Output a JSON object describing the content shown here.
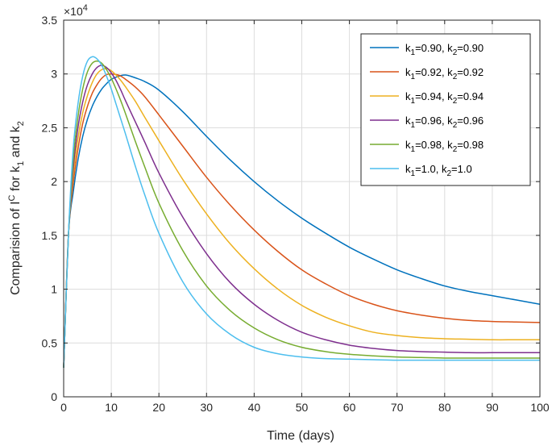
{
  "chart_data": {
    "type": "line",
    "xlabel": "Time (days)",
    "ylabel_parts": {
      "prefix": "Comparision of I",
      "sup": "C",
      "mid": " for k",
      "sub1": "1",
      "and": " and k",
      "sub2": "2"
    },
    "exponent_label": "×10",
    "exponent_power": "4",
    "xlim": [
      0,
      100
    ],
    "ylim": [
      0,
      3.5
    ],
    "x_ticks": [
      0,
      10,
      20,
      30,
      40,
      50,
      60,
      70,
      80,
      90,
      100
    ],
    "y_ticks": [
      0,
      0.5,
      1,
      1.5,
      2,
      2.5,
      3,
      3.5
    ],
    "y_tick_labels": [
      "0",
      "0.5",
      "1",
      "1.5",
      "2",
      "2.5",
      "3",
      "3.5"
    ],
    "grid": true,
    "legend_position": "top-right",
    "series": [
      {
        "name": "k1=0.90, k2=0.90",
        "legend": {
          "k1": "=0.90, k",
          "k2": "=0.90"
        },
        "color": "#0072BD",
        "x": [
          0,
          1,
          2,
          3,
          4,
          5,
          6,
          7,
          8,
          9,
          10,
          11,
          12,
          13,
          14,
          15,
          17,
          20,
          25,
          30,
          35,
          40,
          45,
          50,
          55,
          60,
          65,
          70,
          75,
          80,
          85,
          90,
          95,
          100
        ],
        "y": [
          0.27,
          1.5,
          1.9,
          2.2,
          2.42,
          2.58,
          2.7,
          2.79,
          2.86,
          2.91,
          2.95,
          2.97,
          2.985,
          2.99,
          2.98,
          2.965,
          2.93,
          2.85,
          2.65,
          2.42,
          2.2,
          2.0,
          1.82,
          1.66,
          1.52,
          1.39,
          1.28,
          1.18,
          1.1,
          1.03,
          0.98,
          0.94,
          0.9,
          0.86
        ]
      },
      {
        "name": "k1=0.92, k2=0.92",
        "legend": {
          "k1": "=0.92, k",
          "k2": "=0.92"
        },
        "color": "#D95319",
        "x": [
          0,
          1,
          2,
          3,
          4,
          5,
          6,
          7,
          8,
          9,
          10,
          11,
          12,
          13,
          15,
          17,
          20,
          25,
          30,
          35,
          40,
          45,
          50,
          55,
          60,
          65,
          70,
          75,
          80,
          85,
          90,
          95,
          100
        ],
        "y": [
          0.27,
          1.5,
          1.98,
          2.3,
          2.54,
          2.7,
          2.82,
          2.9,
          2.96,
          2.995,
          3.0,
          2.995,
          2.98,
          2.95,
          2.88,
          2.79,
          2.62,
          2.33,
          2.04,
          1.78,
          1.55,
          1.35,
          1.18,
          1.05,
          0.94,
          0.86,
          0.8,
          0.76,
          0.73,
          0.71,
          0.7,
          0.695,
          0.69
        ]
      },
      {
        "name": "k1=0.94, k2=0.94",
        "legend": {
          "k1": "=0.94, k",
          "k2": "=0.94"
        },
        "color": "#EDB120",
        "x": [
          0,
          1,
          2,
          3,
          4,
          5,
          6,
          7,
          8,
          9,
          10,
          11,
          12,
          13,
          15,
          17,
          20,
          25,
          30,
          35,
          40,
          45,
          50,
          55,
          60,
          65,
          70,
          75,
          80,
          85,
          90,
          95,
          100
        ],
        "y": [
          0.27,
          1.5,
          2.05,
          2.4,
          2.64,
          2.8,
          2.92,
          3.0,
          3.04,
          3.05,
          3.03,
          2.99,
          2.94,
          2.88,
          2.75,
          2.6,
          2.38,
          2.02,
          1.7,
          1.42,
          1.19,
          1.0,
          0.85,
          0.74,
          0.66,
          0.6,
          0.57,
          0.55,
          0.54,
          0.535,
          0.53,
          0.53,
          0.53
        ]
      },
      {
        "name": "k1=0.96, k2=0.96",
        "legend": {
          "k1": "=0.96, k",
          "k2": "=0.96"
        },
        "color": "#7E2F8E",
        "x": [
          0,
          1,
          2,
          3,
          4,
          5,
          6,
          7,
          8,
          9,
          10,
          11,
          12,
          13,
          15,
          17,
          20,
          25,
          30,
          35,
          40,
          45,
          50,
          55,
          60,
          65,
          70,
          75,
          80,
          85,
          90,
          95,
          100
        ],
        "y": [
          0.27,
          1.5,
          2.12,
          2.5,
          2.74,
          2.9,
          3.0,
          3.06,
          3.08,
          3.06,
          3.01,
          2.94,
          2.85,
          2.75,
          2.56,
          2.37,
          2.08,
          1.67,
          1.33,
          1.06,
          0.86,
          0.71,
          0.6,
          0.53,
          0.48,
          0.45,
          0.43,
          0.42,
          0.415,
          0.41,
          0.41,
          0.41,
          0.41
        ]
      },
      {
        "name": "k1=0.98, k2=0.98",
        "legend": {
          "k1": "=0.98, k",
          "k2": "=0.98"
        },
        "color": "#77AC30",
        "x": [
          0,
          1,
          2,
          3,
          4,
          5,
          6,
          7,
          8,
          9,
          10,
          11,
          12,
          13,
          15,
          17,
          20,
          25,
          30,
          35,
          40,
          45,
          50,
          55,
          60,
          65,
          70,
          75,
          80,
          85,
          90,
          95,
          100
        ],
        "y": [
          0.27,
          1.5,
          2.2,
          2.6,
          2.86,
          3.02,
          3.1,
          3.12,
          3.1,
          3.04,
          2.96,
          2.86,
          2.75,
          2.63,
          2.38,
          2.14,
          1.8,
          1.36,
          1.03,
          0.8,
          0.64,
          0.53,
          0.46,
          0.42,
          0.395,
          0.38,
          0.37,
          0.365,
          0.36,
          0.36,
          0.36,
          0.36,
          0.36
        ]
      },
      {
        "name": "k1=1.0, k2=1.0",
        "legend": {
          "k1": "=1.0, k",
          "k2": "=1.0"
        },
        "color": "#4DBEEE",
        "x": [
          0,
          1,
          2,
          3,
          4,
          5,
          6,
          7,
          8,
          9,
          10,
          11,
          12,
          13,
          15,
          17,
          20,
          25,
          30,
          35,
          40,
          45,
          50,
          55,
          60,
          65,
          70,
          75,
          80,
          85,
          90,
          95,
          100
        ],
        "y": [
          0.27,
          1.5,
          2.3,
          2.72,
          2.98,
          3.12,
          3.16,
          3.14,
          3.08,
          2.98,
          2.86,
          2.72,
          2.58,
          2.44,
          2.15,
          1.88,
          1.52,
          1.07,
          0.77,
          0.58,
          0.46,
          0.4,
          0.37,
          0.355,
          0.35,
          0.345,
          0.34,
          0.34,
          0.34,
          0.34,
          0.34,
          0.34,
          0.34
        ]
      }
    ]
  }
}
